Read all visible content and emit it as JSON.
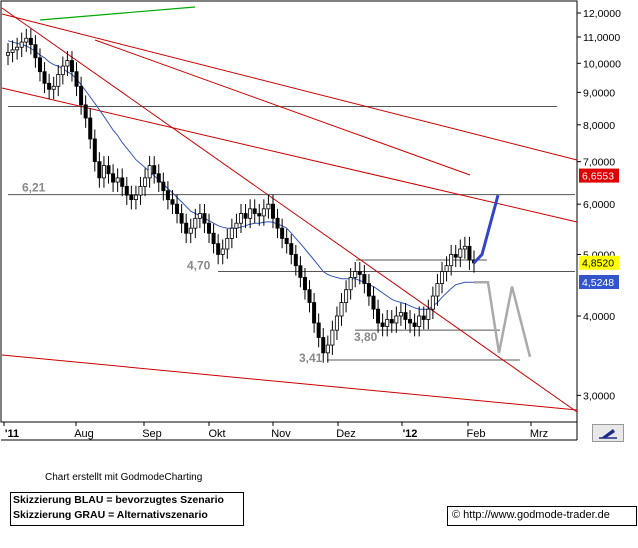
{
  "footer": {
    "caption": "Chart erstellt mit GodmodeCharting",
    "legend_blue": "Skizzierung BLAU = bevorzugtes Szenario",
    "legend_grey": "Skizzierung GRAU = Alternativszenario",
    "url": "© http://www.godmode-trader.de"
  },
  "colors": {
    "candles": "#000000",
    "moving_average": "#3355bb",
    "trendlines": "#cc0000",
    "upper_trend": "#00aa00",
    "scenario_blue": "#3344cc",
    "scenario_grey": "#aaaaaa",
    "label_red_bg": "#dd0000",
    "label_yellow_bg": "#ffff00",
    "label_blue_bg": "#3355cc"
  },
  "chart_data": {
    "type": "candlestick",
    "y_scale": "log",
    "ylim": [
      2.75,
      12.6
    ],
    "y_ticks": [
      {
        "value": 12,
        "label": "12,0000"
      },
      {
        "value": 11,
        "label": "11,0000"
      },
      {
        "value": 10,
        "label": "10,0000"
      },
      {
        "value": 9,
        "label": "9,0000"
      },
      {
        "value": 8,
        "label": "8,0000"
      },
      {
        "value": 7,
        "label": "7,0000"
      },
      {
        "value": 6,
        "label": "6,0000"
      },
      {
        "value": 5,
        "label": "5,0000"
      },
      {
        "value": 4,
        "label": "4,0000"
      },
      {
        "value": 3,
        "label": "3,0000"
      }
    ],
    "x_ticks": [
      "'11",
      "Aug",
      "Sep",
      "Okt",
      "Nov",
      "Dez",
      "'12",
      "Feb",
      "Mrz"
    ],
    "price_labels": [
      {
        "value": 6.6553,
        "label": "6,6553",
        "style": "red"
      },
      {
        "value": 4.852,
        "label": "4,8520",
        "style": "yellow"
      },
      {
        "value": 4.5248,
        "label": "4,5248",
        "style": "blue"
      }
    ],
    "level_annotations": [
      {
        "value": 6.21,
        "label": "6,21"
      },
      {
        "value": 4.7,
        "label": "4,70"
      },
      {
        "value": 3.8,
        "label": "3,80"
      },
      {
        "value": 3.41,
        "label": "3,41"
      }
    ],
    "closes": [
      10.4,
      10.5,
      10.6,
      10.8,
      10.95,
      10.7,
      10.2,
      9.7,
      9.3,
      9.1,
      9.2,
      9.6,
      9.9,
      10.1,
      9.7,
      9.2,
      8.6,
      8.2,
      7.6,
      7.0,
      6.6,
      6.9,
      6.7,
      6.5,
      6.6,
      6.4,
      6.2,
      6.1,
      6.2,
      6.4,
      6.6,
      6.9,
      6.7,
      6.5,
      6.3,
      6.1,
      6.0,
      5.8,
      5.6,
      5.4,
      5.5,
      5.7,
      5.8,
      5.6,
      5.4,
      5.2,
      5.0,
      5.1,
      5.3,
      5.5,
      5.6,
      5.8,
      5.7,
      5.9,
      5.8,
      5.75,
      5.9,
      6.0,
      5.7,
      5.5,
      5.3,
      5.2,
      5.0,
      4.8,
      4.6,
      4.4,
      4.2,
      3.9,
      3.7,
      3.5,
      3.6,
      3.8,
      4.0,
      4.2,
      4.4,
      4.6,
      4.7,
      4.65,
      4.5,
      4.3,
      4.1,
      3.9,
      3.85,
      3.95,
      3.9,
      4.0,
      4.05,
      3.95,
      3.9,
      3.85,
      4.0,
      3.95,
      4.1,
      4.3,
      4.5,
      4.7,
      4.8,
      5.0,
      4.95,
      5.1,
      5.15,
      4.9,
      4.85
    ],
    "moving_average": [
      10.85,
      10.8,
      10.75,
      10.7,
      10.65,
      10.55,
      10.45,
      10.3,
      10.2,
      10.05,
      9.95,
      9.9,
      9.8,
      9.7,
      9.6,
      9.45,
      9.25,
      9.05,
      8.85,
      8.65,
      8.45,
      8.25,
      8.05,
      7.85,
      7.7,
      7.5,
      7.35,
      7.2,
      7.05,
      6.95,
      6.85,
      6.75,
      6.65,
      6.55,
      6.45,
      6.35,
      6.25,
      6.15,
      6.05,
      5.95,
      5.85,
      5.8,
      5.75,
      5.7,
      5.65,
      5.6,
      5.55,
      5.52,
      5.5,
      5.5,
      5.5,
      5.52,
      5.55,
      5.58,
      5.6,
      5.6,
      5.62,
      5.63,
      5.62,
      5.58,
      5.55,
      5.5,
      5.4,
      5.3,
      5.2,
      5.1,
      5.0,
      4.9,
      4.8,
      4.7,
      4.65,
      4.62,
      4.6,
      4.58,
      4.58,
      4.58,
      4.58,
      4.55,
      4.52,
      4.48,
      4.45,
      4.4,
      4.35,
      4.3,
      4.25,
      4.22,
      4.2,
      4.18,
      4.15,
      4.12,
      4.1,
      4.1,
      4.1,
      4.15,
      4.2,
      4.28,
      4.35,
      4.42,
      4.48,
      4.5,
      4.52,
      4.52,
      4.52
    ]
  }
}
